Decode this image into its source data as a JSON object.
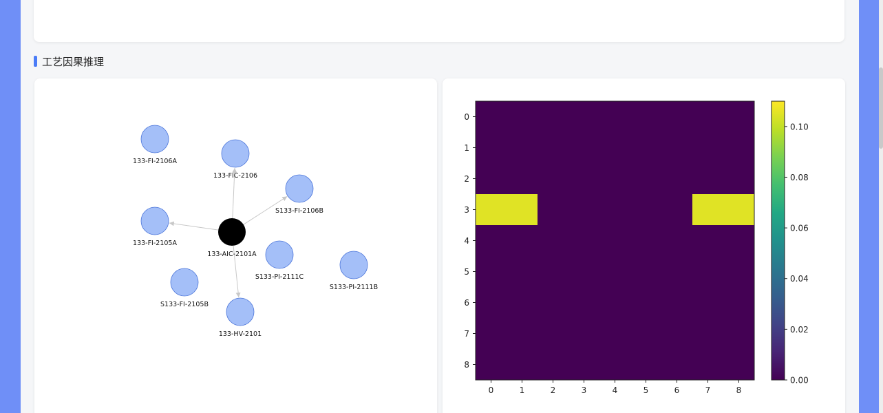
{
  "section": {
    "title": "工艺因果推理"
  },
  "graph": {
    "nodes": [
      {
        "id": "133-FI-2106A",
        "label": "133-FI-2106A",
        "root": false
      },
      {
        "id": "133-FIC-2106",
        "label": "133-FIC-2106",
        "root": false
      },
      {
        "id": "S133-FI-2106B",
        "label": "S133-FI-2106B",
        "root": false
      },
      {
        "id": "133-FI-2105A",
        "label": "133-FI-2105A",
        "root": false
      },
      {
        "id": "133-AIC-2101A",
        "label": "133-AIC-2101A",
        "root": true
      },
      {
        "id": "S133-PI-2111C",
        "label": "S133-PI-2111C",
        "root": false
      },
      {
        "id": "S133-PI-2111B",
        "label": "S133-PI-2111B",
        "root": false
      },
      {
        "id": "S133-FI-2105B",
        "label": "S133-FI-2105B",
        "root": false
      },
      {
        "id": "133-HV-2101",
        "label": "133-HV-2101",
        "root": false
      }
    ],
    "edges": [
      {
        "from": "133-AIC-2101A",
        "to": "133-FIC-2106"
      },
      {
        "from": "133-AIC-2101A",
        "to": "S133-FI-2106B"
      },
      {
        "from": "133-AIC-2101A",
        "to": "133-FI-2105A"
      },
      {
        "from": "133-AIC-2101A",
        "to": "133-HV-2101"
      }
    ],
    "colors": {
      "node": "#a4bff8",
      "node_border": "#4a74d9",
      "root": "#000000",
      "edge": "#c8c8c8"
    }
  },
  "chart_data": {
    "type": "heatmap",
    "rows": [
      "0",
      "1",
      "2",
      "3",
      "4",
      "5",
      "6",
      "7",
      "8"
    ],
    "cols": [
      "0",
      "1",
      "2",
      "3",
      "4",
      "5",
      "6",
      "7",
      "8"
    ],
    "values": [
      [
        0,
        0,
        0,
        0,
        0,
        0,
        0,
        0,
        0
      ],
      [
        0,
        0,
        0,
        0,
        0,
        0,
        0,
        0,
        0
      ],
      [
        0,
        0,
        0,
        0,
        0,
        0,
        0,
        0,
        0
      ],
      [
        0.105,
        0.105,
        0,
        0,
        0,
        0,
        0,
        0.105,
        0.105
      ],
      [
        0,
        0,
        0,
        0,
        0,
        0,
        0,
        0,
        0
      ],
      [
        0,
        0,
        0,
        0,
        0,
        0,
        0,
        0,
        0
      ],
      [
        0,
        0,
        0,
        0,
        0,
        0,
        0,
        0,
        0
      ],
      [
        0,
        0,
        0,
        0,
        0,
        0,
        0,
        0,
        0
      ],
      [
        0,
        0,
        0,
        0,
        0,
        0,
        0,
        0,
        0
      ]
    ],
    "colorbar": {
      "min": 0,
      "max": 0.11,
      "ticks": [
        "0.00",
        "0.02",
        "0.04",
        "0.06",
        "0.08",
        "0.10"
      ],
      "colormap": "viridis"
    },
    "grid": false
  }
}
